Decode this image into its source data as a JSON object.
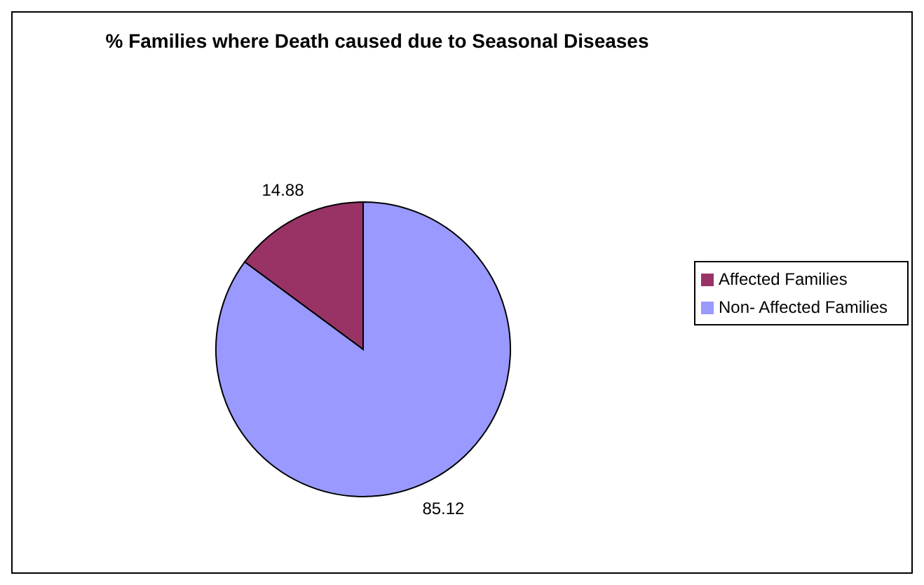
{
  "chart_data": {
    "type": "pie",
    "title": "% Families where Death caused  due to Seasonal Diseases",
    "categories": [
      "Non- Affected Families",
      "Affected Families"
    ],
    "values": [
      85.12,
      14.88
    ],
    "colors": [
      "#9999ff",
      "#993366"
    ],
    "data_labels": true,
    "legend": "right"
  }
}
